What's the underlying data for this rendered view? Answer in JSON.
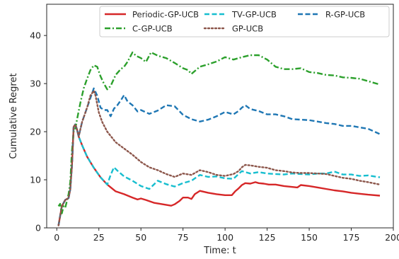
{
  "chart_data": {
    "type": "line",
    "title": "",
    "xlabel": "Time: t",
    "ylabel": "Cumulative Regret",
    "xlim": [
      -6,
      200
    ],
    "ylim": [
      0,
      46.5
    ],
    "xticks": [
      0,
      25,
      50,
      75,
      100,
      125,
      150,
      175,
      200
    ],
    "yticks": [
      0,
      10,
      20,
      30,
      40
    ],
    "grid": false,
    "legend": {
      "placement": "top-right",
      "columns": 3
    },
    "series": [
      {
        "name": "Periodic-GP-UCB",
        "color": "#d62728",
        "dash": "solid",
        "x": [
          1,
          3,
          5,
          7,
          8,
          9,
          10,
          11,
          12,
          13,
          15,
          18,
          22,
          26,
          30,
          35,
          40,
          45,
          48,
          50,
          53,
          58,
          63,
          68,
          70,
          73,
          75,
          78,
          80,
          82,
          85,
          90,
          95,
          100,
          104,
          106,
          108,
          110,
          112,
          115,
          118,
          120,
          123,
          126,
          130,
          135,
          140,
          143,
          145,
          150,
          155,
          160,
          165,
          170,
          175,
          180,
          185,
          192
        ],
        "y": [
          0.5,
          4.5,
          5.8,
          6.2,
          8,
          13,
          21,
          21.5,
          20.5,
          19,
          17.2,
          14.8,
          12.5,
          10.5,
          9,
          7.6,
          7,
          6.3,
          5.9,
          6.1,
          5.8,
          5.2,
          4.9,
          4.6,
          4.9,
          5.6,
          6.3,
          6.3,
          6,
          7,
          7.7,
          7.3,
          7,
          6.8,
          6.8,
          7.6,
          8.2,
          8.9,
          9.3,
          9.2,
          9.5,
          9.3,
          9.2,
          9,
          9,
          8.7,
          8.5,
          8.4,
          8.9,
          8.7,
          8.4,
          8.1,
          7.8,
          7.6,
          7.3,
          7.1,
          6.9,
          6.7
        ]
      },
      {
        "name": "TV-GP-UCB",
        "color": "#17becf",
        "dash": "dashed",
        "x": [
          1,
          3,
          5,
          7,
          8,
          9,
          10,
          11,
          12,
          13,
          15,
          18,
          22,
          26,
          30,
          32,
          34,
          36,
          40,
          45,
          50,
          55,
          60,
          65,
          70,
          75,
          80,
          85,
          90,
          95,
          100,
          105,
          108,
          110,
          112,
          115,
          120,
          125,
          130,
          135,
          140,
          145,
          150,
          155,
          160,
          165,
          170,
          175,
          180,
          185,
          192
        ],
        "y": [
          0.5,
          4.5,
          5.8,
          6.2,
          8,
          13,
          21,
          21.5,
          20.5,
          19,
          17.2,
          14.8,
          12.5,
          10.5,
          9,
          11,
          12.6,
          11.9,
          10.7,
          9.8,
          8.7,
          8.1,
          9.8,
          9.1,
          8.6,
          9.3,
          9.8,
          11,
          10.6,
          10.7,
          10.3,
          10.2,
          11.2,
          11.8,
          11.6,
          11.3,
          11.6,
          11.3,
          11.2,
          11.1,
          11.3,
          11.2,
          11.1,
          11.3,
          11.3,
          11.7,
          11.1,
          11.1,
          10.8,
          10.9,
          10.5
        ]
      },
      {
        "name": "R-GP-UCB",
        "color": "#1f77b4",
        "dash": "dashed",
        "x": [
          1,
          3,
          5,
          7,
          8,
          9,
          10,
          11,
          12,
          13,
          15,
          18,
          20,
          22,
          24,
          26,
          28,
          30,
          32,
          34,
          36,
          38,
          40,
          42,
          45,
          48,
          50,
          55,
          60,
          65,
          70,
          75,
          80,
          85,
          90,
          95,
          100,
          105,
          108,
          110,
          112,
          115,
          120,
          125,
          130,
          135,
          140,
          145,
          150,
          155,
          160,
          165,
          170,
          175,
          180,
          185,
          192
        ],
        "y": [
          0.5,
          4.5,
          5.8,
          6.2,
          8,
          13,
          21,
          21.5,
          20.5,
          19,
          22,
          25,
          27,
          29,
          27.5,
          25,
          24.5,
          24.5,
          23.2,
          24.8,
          25.5,
          26.5,
          27.6,
          26.3,
          25.5,
          24.2,
          24.5,
          23.7,
          24.4,
          25.5,
          25.3,
          23.5,
          22.6,
          22.1,
          22.5,
          23.2,
          24.1,
          23.6,
          24.3,
          25,
          25.5,
          24.7,
          24.3,
          23.6,
          23.6,
          23.2,
          22.6,
          22.5,
          22.4,
          22.1,
          21.8,
          21.6,
          21.2,
          21.2,
          20.9,
          20.6,
          19.5
        ]
      },
      {
        "name": "C-GP-UCB",
        "color": "#2ca02c",
        "dash": "dashdot",
        "x": [
          1,
          2,
          3,
          4,
          5,
          6,
          7,
          8,
          9,
          10,
          11,
          12,
          14,
          16,
          18,
          20,
          22,
          24,
          26,
          28,
          30,
          32,
          35,
          38,
          40,
          42,
          45,
          47,
          50,
          53,
          56,
          60,
          65,
          70,
          75,
          78,
          80,
          85,
          90,
          95,
          100,
          105,
          110,
          115,
          120,
          125,
          130,
          135,
          140,
          145,
          150,
          155,
          160,
          165,
          170,
          175,
          180,
          185,
          192
        ],
        "y": [
          4.5,
          5,
          3,
          4.5,
          4.2,
          5.5,
          7,
          9.5,
          16,
          20,
          20.5,
          22.5,
          26,
          29,
          31,
          32.8,
          33.8,
          33.5,
          31.5,
          30,
          28.8,
          29.5,
          31.8,
          33,
          33.5,
          34.5,
          36.5,
          35.8,
          35.3,
          34.5,
          36.5,
          35.8,
          35.3,
          34.3,
          33.2,
          32.8,
          32,
          33.5,
          34,
          34.6,
          35.5,
          35,
          35.5,
          35.9,
          35.9,
          35,
          33.5,
          33,
          33,
          33.2,
          32.4,
          32.2,
          31.8,
          31.7,
          31.3,
          31.2,
          31,
          30.5,
          29.8
        ]
      },
      {
        "name": "GP-UCB",
        "color": "#8c564b",
        "dash": "dotted",
        "x": [
          1,
          3,
          5,
          7,
          8,
          9,
          10,
          11,
          12,
          13,
          15,
          18,
          20,
          22,
          23,
          25,
          27,
          30,
          35,
          40,
          45,
          50,
          55,
          60,
          65,
          70,
          75,
          80,
          85,
          90,
          95,
          100,
          105,
          108,
          110,
          112,
          115,
          120,
          125,
          130,
          135,
          140,
          145,
          150,
          155,
          160,
          165,
          170,
          175,
          180,
          185,
          192
        ],
        "y": [
          0.5,
          4.5,
          5.8,
          6.2,
          8,
          13,
          21,
          21.5,
          20.5,
          19,
          22,
          25,
          27.5,
          28.5,
          27.5,
          24,
          22,
          20,
          17.8,
          16.5,
          15.2,
          13.7,
          12.6,
          12,
          11.2,
          10.6,
          11.3,
          11,
          12,
          11.6,
          11,
          10.8,
          11.2,
          11.8,
          12.6,
          13.1,
          13,
          12.7,
          12.5,
          12,
          11.8,
          11.5,
          11.4,
          11.4,
          11.3,
          11.2,
          10.8,
          10.4,
          10.2,
          9.8,
          9.5,
          9
        ]
      }
    ]
  }
}
